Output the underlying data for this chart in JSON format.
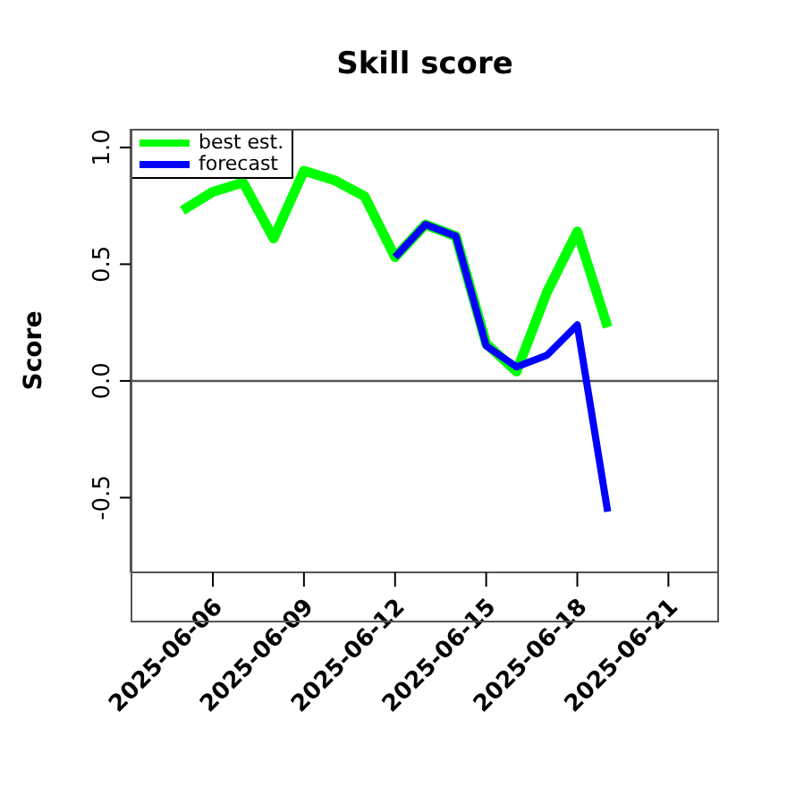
{
  "chart_data": {
    "type": "line",
    "title": "Skill score",
    "ylabel": "Score",
    "x": [
      "2025-06-05",
      "2025-06-06",
      "2025-06-07",
      "2025-06-08",
      "2025-06-09",
      "2025-06-10",
      "2025-06-11",
      "2025-06-12",
      "2025-06-13",
      "2025-06-14",
      "2025-06-15",
      "2025-06-16",
      "2025-06-17",
      "2025-06-18",
      "2025-06-19"
    ],
    "series": [
      {
        "name": "best est.",
        "color": "#00ff00",
        "values": [
          0.73,
          0.81,
          0.85,
          0.61,
          0.9,
          0.86,
          0.79,
          0.53,
          0.67,
          0.62,
          0.16,
          0.04,
          0.38,
          0.64,
          0.23
        ]
      },
      {
        "name": "forecast",
        "color": "#0000ff",
        "values": [
          null,
          null,
          null,
          null,
          null,
          null,
          null,
          0.53,
          0.67,
          0.62,
          0.15,
          0.06,
          0.11,
          0.24,
          -0.56
        ]
      }
    ],
    "xlim": [
      "2025-06-03T07:00",
      "2025-06-22T16:00"
    ],
    "xticks": [
      "2025-06-06",
      "2025-06-09",
      "2025-06-12",
      "2025-06-15",
      "2025-06-18",
      "2025-06-21"
    ],
    "ylim": [
      -0.82,
      1.08
    ],
    "yticks": [
      -0.5,
      {
        "value": 0,
        "label": "0.0"
      },
      0.5,
      {
        "value": 1,
        "label": "1.0"
      }
    ],
    "ref_lines": [
      {
        "axis": "y",
        "value": 0,
        "color": "#555555"
      }
    ],
    "legend": "top left",
    "grid": false,
    "marker": "none",
    "line_style": "solid"
  }
}
